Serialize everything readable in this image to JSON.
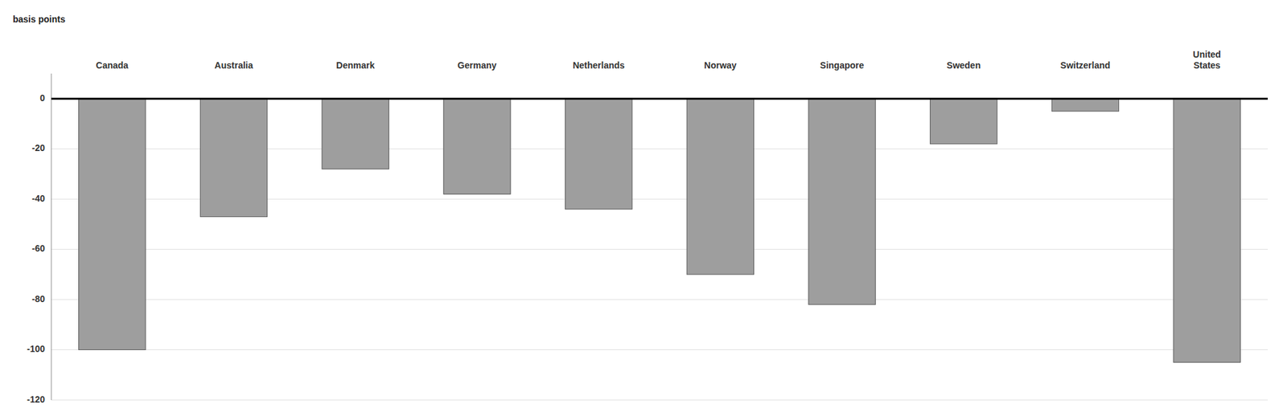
{
  "chart_data": {
    "type": "bar",
    "ylabel": "basis points",
    "categories": [
      "Canada",
      "Australia",
      "Denmark",
      "Germany",
      "Netherlands",
      "Norway",
      "Singapore",
      "Sweden",
      "Switzerland",
      "United\nStates"
    ],
    "values": [
      -100,
      -47,
      -28,
      -38,
      -44,
      -70,
      -82,
      -18,
      -5,
      -105
    ],
    "color": "#9E9E9E",
    "ylim": [
      -120,
      10
    ],
    "yticks": [
      0,
      -20,
      -40,
      -60,
      -80,
      -100,
      -120
    ],
    "grid": true
  }
}
